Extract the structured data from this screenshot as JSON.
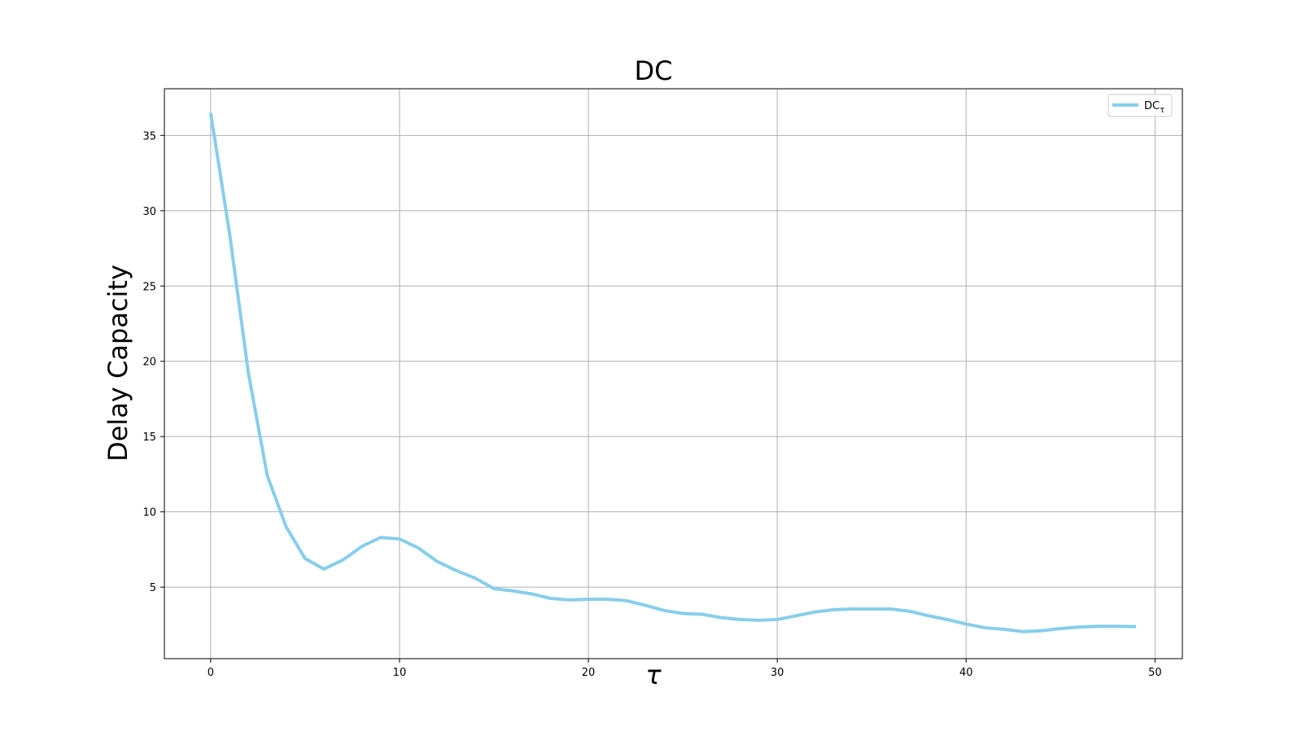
{
  "chart_data": {
    "type": "line",
    "title": "DC",
    "xlabel": "τ",
    "ylabel": "Delay Capacity",
    "xlim": [
      -2.45,
      51.45
    ],
    "ylim": [
      0.25,
      38.1
    ],
    "xticks": [
      0,
      10,
      20,
      30,
      40,
      50
    ],
    "yticks": [
      5,
      10,
      15,
      20,
      25,
      30,
      35
    ],
    "grid": true,
    "legend_position": "top-right",
    "x": [
      0,
      1,
      2,
      3,
      4,
      5,
      6,
      7,
      8,
      9,
      10,
      11,
      12,
      13,
      14,
      15,
      16,
      17,
      18,
      19,
      20,
      21,
      22,
      23,
      24,
      25,
      26,
      27,
      28,
      29,
      30,
      31,
      32,
      33,
      34,
      35,
      36,
      37,
      38,
      39,
      40,
      41,
      42,
      43,
      44,
      45,
      46,
      47,
      48,
      49
    ],
    "series": [
      {
        "name": "DC",
        "name_subscript": "τ",
        "color": "#87CEEB",
        "values": [
          36.5,
          28.5,
          19.2,
          12.4,
          9.0,
          6.9,
          6.2,
          6.8,
          7.7,
          8.3,
          8.2,
          7.6,
          6.7,
          6.1,
          5.6,
          4.9,
          4.75,
          4.55,
          4.25,
          4.15,
          4.2,
          4.2,
          4.1,
          3.8,
          3.45,
          3.25,
          3.2,
          2.98,
          2.85,
          2.8,
          2.85,
          3.1,
          3.35,
          3.5,
          3.55,
          3.55,
          3.55,
          3.4,
          3.1,
          2.85,
          2.55,
          2.3,
          2.2,
          2.05,
          2.1,
          2.25,
          2.35,
          2.4,
          2.4,
          2.38
        ]
      }
    ]
  }
}
